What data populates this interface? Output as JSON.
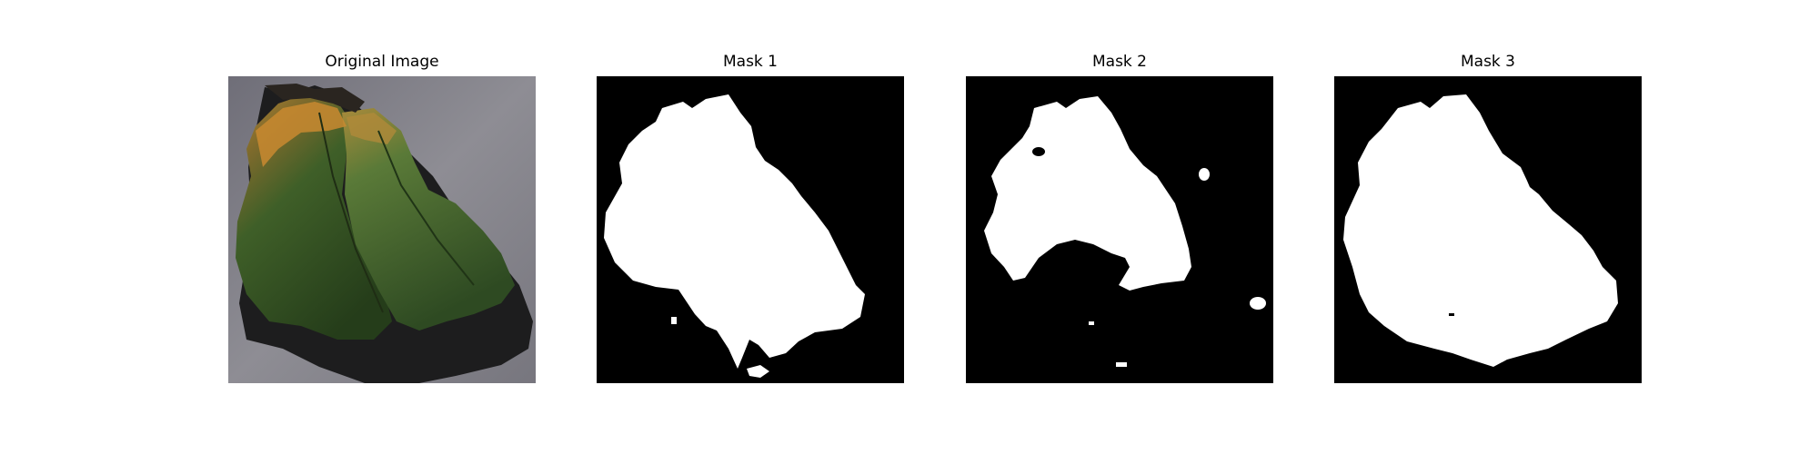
{
  "figure": {
    "panels": [
      {
        "title": "Original Image",
        "kind": "photo"
      },
      {
        "title": "Mask 1",
        "kind": "mask"
      },
      {
        "title": "Mask 2",
        "kind": "mask"
      },
      {
        "title": "Mask 3",
        "kind": "mask"
      }
    ]
  },
  "colors": {
    "mask_background": "#000000",
    "mask_foreground": "#ffffff",
    "photo_background": "#8a8a90",
    "leaf_green": "#3f5e2a",
    "leaf_orange": "#b07a2c",
    "shadow": "#1c1c1c"
  }
}
